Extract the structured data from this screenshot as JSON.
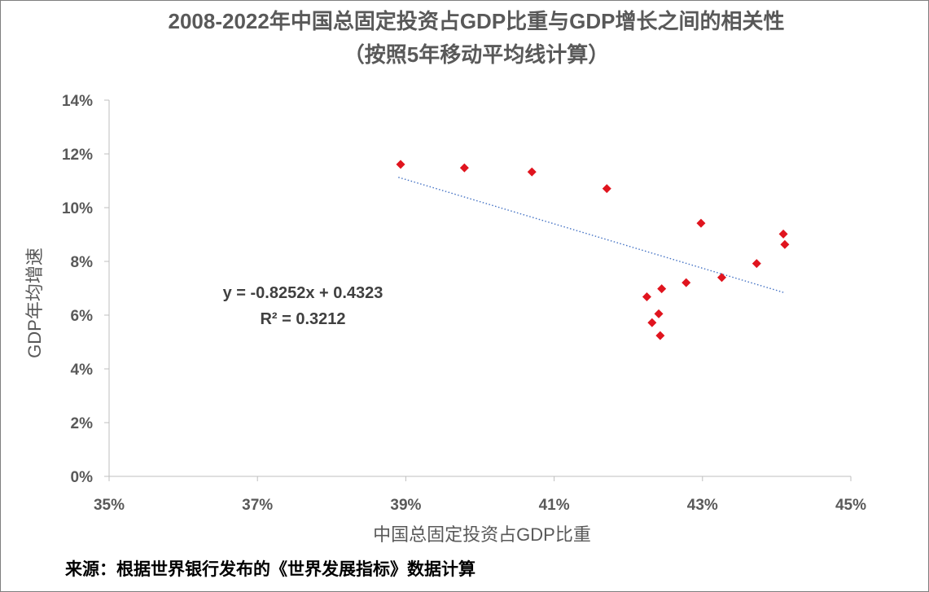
{
  "chart_data": {
    "type": "scatter",
    "title": "2008-2022年中国总固定投资占GDP比重与GDP增长之间的相关性",
    "subtitle": "（按照5年移动平均线计算）",
    "xlabel": "中国总固定投资占GDP比重",
    "ylabel": "GDP年均增速",
    "xlim": [
      0.35,
      0.45
    ],
    "ylim": [
      0.0,
      0.14
    ],
    "x_ticks": [
      0.35,
      0.37,
      0.39,
      0.41,
      0.43,
      0.45
    ],
    "x_tick_labels": [
      "35%",
      "37%",
      "39%",
      "41%",
      "43%",
      "45%"
    ],
    "y_ticks": [
      0.0,
      0.02,
      0.04,
      0.06,
      0.08,
      0.1,
      0.12,
      0.14
    ],
    "y_tick_labels": [
      "0%",
      "2%",
      "4%",
      "6%",
      "8%",
      "10%",
      "12%",
      "14%"
    ],
    "marker_color": "#e0141e",
    "trendline_color": "#4472c4",
    "points": [
      {
        "x": 0.3893,
        "y": 0.1161
      },
      {
        "x": 0.3979,
        "y": 0.1148
      },
      {
        "x": 0.407,
        "y": 0.1133
      },
      {
        "x": 0.4171,
        "y": 0.1071
      },
      {
        "x": 0.4298,
        "y": 0.0942
      },
      {
        "x": 0.4409,
        "y": 0.0902
      },
      {
        "x": 0.4411,
        "y": 0.0863
      },
      {
        "x": 0.4373,
        "y": 0.0792
      },
      {
        "x": 0.4326,
        "y": 0.074
      },
      {
        "x": 0.4278,
        "y": 0.0721
      },
      {
        "x": 0.4245,
        "y": 0.0698
      },
      {
        "x": 0.4225,
        "y": 0.0668
      },
      {
        "x": 0.4241,
        "y": 0.0605
      },
      {
        "x": 0.4232,
        "y": 0.0572
      },
      {
        "x": 0.4243,
        "y": 0.0524
      }
    ],
    "trendline": {
      "slope": -0.8252,
      "intercept": 0.4323,
      "x_range": [
        0.389,
        0.441
      ]
    },
    "equation_text": "y = -0.8252x + 0.4323",
    "r2_text": "R² = 0.3212",
    "source": "来源：根据世界银行发布的《世界发展指标》数据计算"
  }
}
